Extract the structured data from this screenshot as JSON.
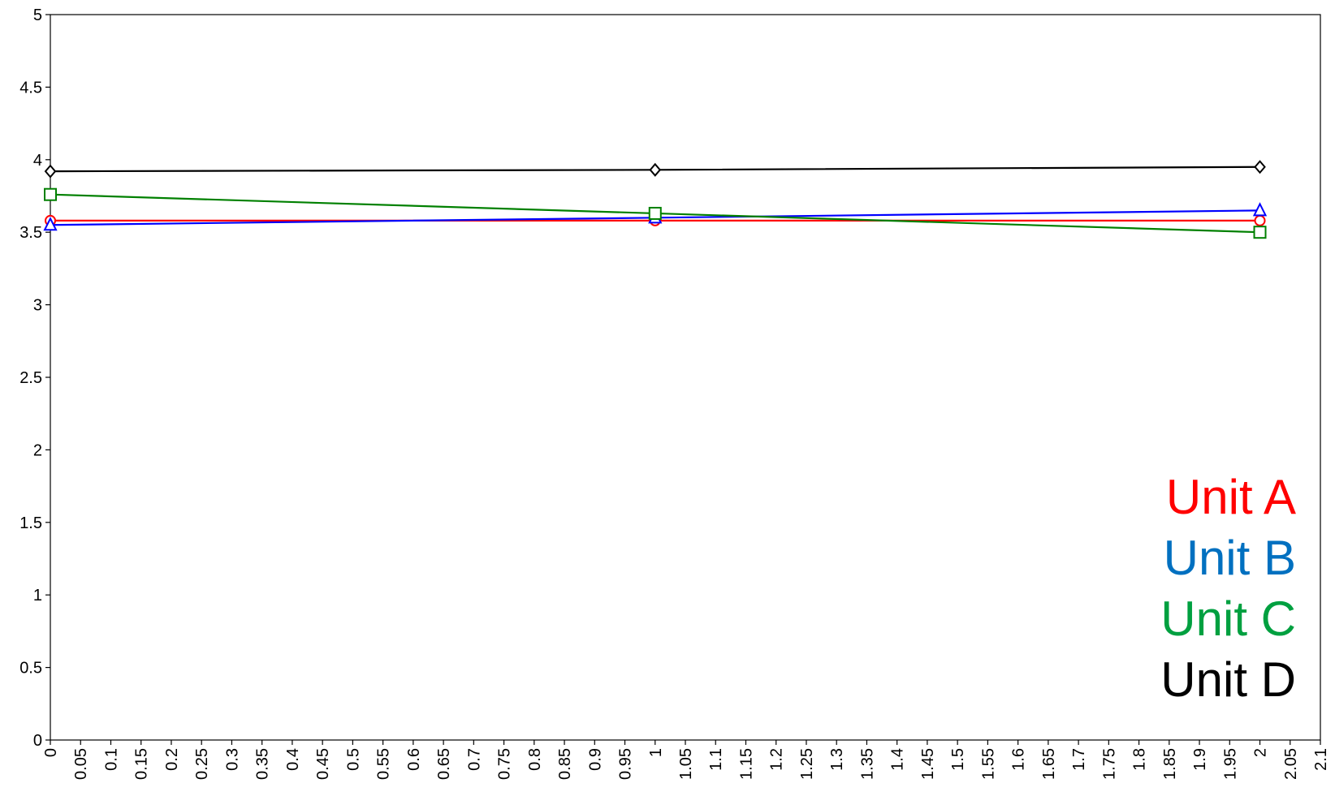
{
  "chart_data": {
    "type": "line",
    "title": "",
    "xlabel": "",
    "ylabel": "",
    "xlim": [
      0,
      2.1
    ],
    "ylim": [
      0,
      5
    ],
    "x_ticks": [
      "0",
      "0.05",
      "0.1",
      "0.15",
      "0.2",
      "0.25",
      "0.3",
      "0.35",
      "0.4",
      "0.45",
      "0.5",
      "0.55",
      "0.6",
      "0.65",
      "0.7",
      "0.75",
      "0.8",
      "0.85",
      "0.9",
      "0.95",
      "1",
      "1.05",
      "1.1",
      "1.15",
      "1.2",
      "1.25",
      "1.3",
      "1.35",
      "1.4",
      "1.45",
      "1.5",
      "1.55",
      "1.6",
      "1.65",
      "1.7",
      "1.75",
      "1.8",
      "1.85",
      "1.9",
      "1.95",
      "2",
      "2.05",
      "2.1"
    ],
    "y_ticks": [
      "0",
      "0.5",
      "1",
      "1.5",
      "2",
      "2.5",
      "3",
      "3.5",
      "4",
      "4.5",
      "5"
    ],
    "grid": false,
    "legend_position": "bottom-right",
    "series": [
      {
        "name": "Unit A",
        "color": "#ff0000",
        "marker": "circle",
        "x": [
          0,
          1,
          2
        ],
        "y": [
          3.58,
          3.58,
          3.58
        ]
      },
      {
        "name": "Unit B",
        "color": "#0070c0",
        "line_color": "#0000ff",
        "marker": "triangle",
        "x": [
          0,
          1,
          2
        ],
        "y": [
          3.55,
          3.6,
          3.65
        ]
      },
      {
        "name": "Unit C",
        "color": "#00a040",
        "line_color": "#008000",
        "marker": "square",
        "x": [
          0,
          1,
          2
        ],
        "y": [
          3.76,
          3.63,
          3.5
        ]
      },
      {
        "name": "Unit D",
        "color": "#000000",
        "marker": "diamond",
        "x": [
          0,
          1,
          2
        ],
        "y": [
          3.92,
          3.93,
          3.95
        ]
      }
    ]
  }
}
